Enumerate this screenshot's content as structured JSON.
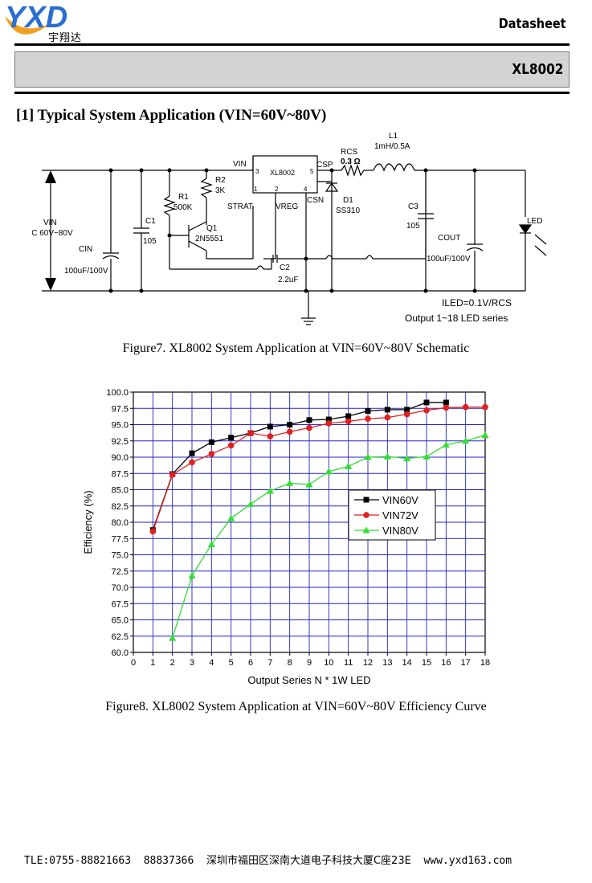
{
  "header": {
    "logo_text": "YXD",
    "logo_cn": "宇翔达",
    "doc_type": "Datasheet",
    "part_number": "XL8002"
  },
  "section_title": "[1] Typical System Application (VIN=60V~80V)",
  "schematic": {
    "ic_name": "XL8002",
    "pins": {
      "vin": "VIN",
      "csp": "CSP",
      "csn": "CSN",
      "strat": "STRAT",
      "vreg": "VREG",
      "p1": "1",
      "p2": "2",
      "p3": "3",
      "p4": "4",
      "p5": "5"
    },
    "labels": {
      "vin": "VIN",
      "vin_range": "DC 60V~80V",
      "cin": "CIN",
      "cin_val": "100uF/100V",
      "c1": "C1",
      "c1_val": "105",
      "r1": "R1",
      "r1_val": "500K",
      "r2": "R2",
      "r2_val": "3K",
      "q1": "Q1",
      "q1_val": "2N5551",
      "c2": "C2",
      "c2_val": "2.2uF",
      "rcs": "RCS",
      "rcs_val": "0.3 Ω",
      "d1": "D1",
      "d1_val": "SS310",
      "l1": "L1",
      "l1_val": "1mH/0.5A",
      "c3": "C3",
      "c3_val": "105",
      "cout": "COUT",
      "cout_val": "100uF/100V",
      "led": "LED",
      "iled": "ILED=0.1V/RCS",
      "output": "Output 1~18 LED series"
    }
  },
  "figure7_caption": "Figure7. XL8002 System Application at VIN=60V~80V Schematic",
  "chart_data": {
    "type": "line",
    "title": "",
    "xlabel": "Output Series N * 1W LED",
    "ylabel": "Efficiency (%)",
    "xlim": [
      0,
      18
    ],
    "ylim": [
      60,
      100
    ],
    "xticks": [
      "0",
      "1",
      "2",
      "3",
      "4",
      "5",
      "6",
      "7",
      "8",
      "9",
      "10",
      "11",
      "12",
      "13",
      "14",
      "15",
      "16",
      "17",
      "18"
    ],
    "yticks": [
      "60.0",
      "62.5",
      "65.0",
      "67.5",
      "70.0",
      "72.5",
      "75.0",
      "77.5",
      "80.0",
      "82.5",
      "85.0",
      "87.5",
      "90.0",
      "92.5",
      "95.0",
      "97.5",
      "100.0"
    ],
    "grid": true,
    "legend_position": "center-right",
    "series": [
      {
        "name": "VIN60V",
        "color": "#000000",
        "marker": "square",
        "x": [
          1,
          2,
          3,
          4,
          5,
          6,
          7,
          8,
          9,
          10,
          11,
          12,
          13,
          14,
          15,
          16
        ],
        "y": [
          78.8,
          87.4,
          90.6,
          92.3,
          93.0,
          93.7,
          94.7,
          95.0,
          95.7,
          95.8,
          96.3,
          97.1,
          97.3,
          97.3,
          98.4,
          98.4
        ]
      },
      {
        "name": "VIN72V",
        "color": "#e02020",
        "marker": "circle",
        "x": [
          1,
          2,
          3,
          4,
          5,
          6,
          7,
          8,
          9,
          10,
          11,
          12,
          13,
          14,
          15,
          16,
          17,
          18
        ],
        "y": [
          78.6,
          87.3,
          89.2,
          90.5,
          91.8,
          93.7,
          93.2,
          93.9,
          94.5,
          95.2,
          95.5,
          95.9,
          96.1,
          96.6,
          97.2,
          97.6,
          97.7,
          97.7
        ]
      },
      {
        "name": "VIN80V",
        "color": "#33dd33",
        "marker": "triangle",
        "x": [
          2,
          3,
          4,
          5,
          6,
          7,
          8,
          9,
          10,
          11,
          12,
          13,
          14,
          15,
          16,
          17,
          18
        ],
        "y": [
          62.2,
          71.8,
          76.6,
          80.6,
          82.8,
          84.8,
          86.0,
          85.8,
          87.8,
          88.6,
          90.0,
          90.1,
          89.8,
          90.1,
          91.9,
          92.5,
          93.4
        ]
      }
    ]
  },
  "figure8_caption": "Figure8. XL8002 System Application at VIN=60V~80V Efficiency Curve",
  "footer": {
    "tel": "TLE:0755-88821663  88837366",
    "address": "深圳市福田区深南大道电子科技大厦C座23E",
    "website": "www.yxd163.com"
  }
}
